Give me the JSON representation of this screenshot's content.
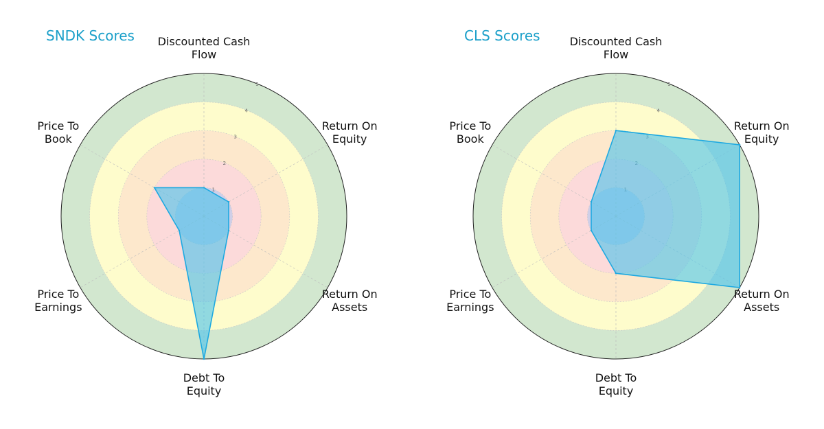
{
  "colors": {
    "title": "#1a9fc9",
    "series_fill": "#4ec3ec",
    "series_stroke": "#1ea9e1",
    "band_colors": [
      "#cfcfe8",
      "#fcdada",
      "#fde8cc",
      "#fefccc",
      "#d2e7cf"
    ]
  },
  "chart_data": [
    {
      "type": "radar",
      "title": "SNDK Scores",
      "axes": [
        [
          "Discounted Cash",
          "Flow"
        ],
        [
          "Return On",
          "Equity"
        ],
        [
          "Return On",
          "Assets"
        ],
        [
          "Debt To",
          "Equity"
        ],
        [
          "Price To",
          "Earnings"
        ],
        [
          "Price To",
          "Book"
        ]
      ],
      "rticks": [
        "1",
        "2",
        "3",
        "4",
        "5"
      ],
      "rlim": [
        0,
        5
      ],
      "series": [
        {
          "values": [
            1,
            1,
            1,
            5,
            1,
            2
          ]
        }
      ]
    },
    {
      "type": "radar",
      "title": "CLS Scores",
      "axes": [
        [
          "Discounted Cash",
          "Flow"
        ],
        [
          "Return On",
          "Equity"
        ],
        [
          "Return On",
          "Assets"
        ],
        [
          "Debt To",
          "Equity"
        ],
        [
          "Price To",
          "Earnings"
        ],
        [
          "Price To",
          "Book"
        ]
      ],
      "rticks": [
        "1",
        "2",
        "3",
        "4",
        "5"
      ],
      "rlim": [
        0,
        5
      ],
      "series": [
        {
          "values": [
            3,
            5,
            5,
            2,
            1,
            1
          ]
        }
      ]
    }
  ]
}
